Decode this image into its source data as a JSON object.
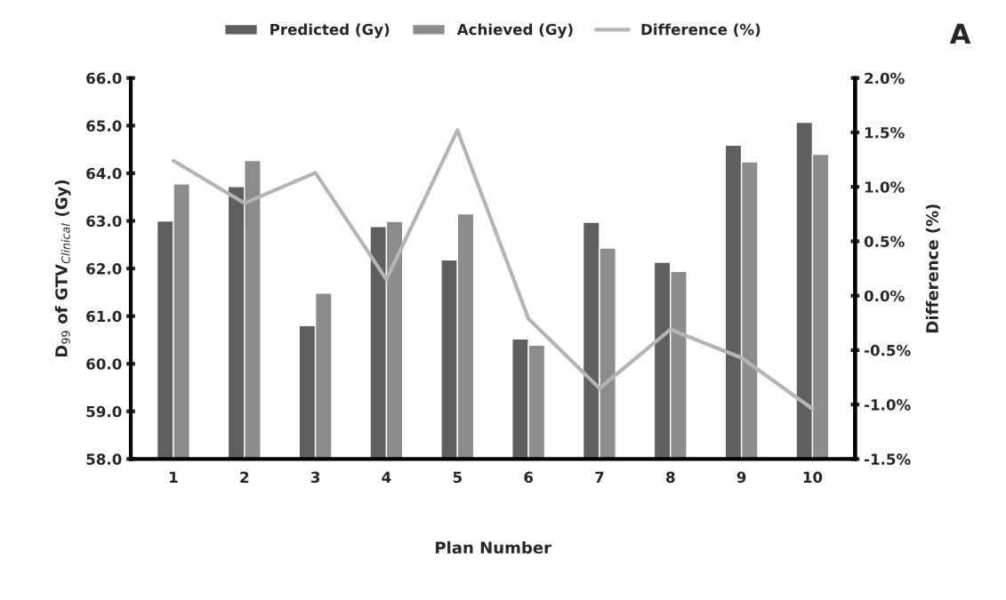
{
  "chart_data": {
    "type": "bar",
    "categories": [
      "1",
      "2",
      "3",
      "4",
      "5",
      "6",
      "7",
      "8",
      "9",
      "10"
    ],
    "series": [
      {
        "name": "Predicted (Gy)",
        "color": "#5f5f5f",
        "values": [
          63.0,
          63.72,
          60.8,
          62.88,
          62.18,
          60.52,
          62.97,
          62.13,
          64.59,
          65.07
        ]
      },
      {
        "name": "Achieved (Gy)",
        "color": "#8c8c8c",
        "values": [
          63.78,
          64.27,
          61.48,
          62.99,
          63.15,
          60.39,
          62.43,
          61.94,
          64.24,
          64.4
        ]
      },
      {
        "name": "Difference (%)",
        "type": "line",
        "axis": "y2",
        "color": "#b4b4b4",
        "values": [
          1.24,
          0.85,
          1.13,
          0.15,
          1.52,
          -0.21,
          -0.85,
          -0.31,
          -0.57,
          -1.04
        ]
      }
    ],
    "xlabel": "Plan Number",
    "ylabel": "D$_{99}$ of GTV$_{Clinical}$ (Gy)",
    "y2label": "Difference (%)",
    "ylim": [
      58,
      66
    ],
    "yticks": [
      {
        "value": 58,
        "label": "58.0"
      },
      {
        "value": 59,
        "label": "59.0"
      },
      {
        "value": 60,
        "label": "60.0"
      },
      {
        "value": 61,
        "label": "61.0"
      },
      {
        "value": 62,
        "label": "62.0"
      },
      {
        "value": 63,
        "label": "63.0"
      },
      {
        "value": 64,
        "label": "64.0"
      },
      {
        "value": 65,
        "label": "65.0"
      },
      {
        "value": 66,
        "label": "66.0"
      }
    ],
    "y2lim": [
      -1.5,
      2.0
    ],
    "y2ticks": [
      {
        "value": -1.5,
        "label": "-1.5%"
      },
      {
        "value": -1.0,
        "label": "-1.0%"
      },
      {
        "value": -0.5,
        "label": "-0.5%"
      },
      {
        "value": 0,
        "label": "0.0%"
      },
      {
        "value": 0.5,
        "label": "0.5%"
      },
      {
        "value": 1.0,
        "label": "1.0%"
      },
      {
        "value": 1.5,
        "label": "1.5%"
      },
      {
        "value": 2.0,
        "label": "2.0%"
      }
    ],
    "annotations": [
      "A"
    ],
    "legend": "top",
    "grid": false,
    "marker": "none",
    "line_style": "solid"
  }
}
